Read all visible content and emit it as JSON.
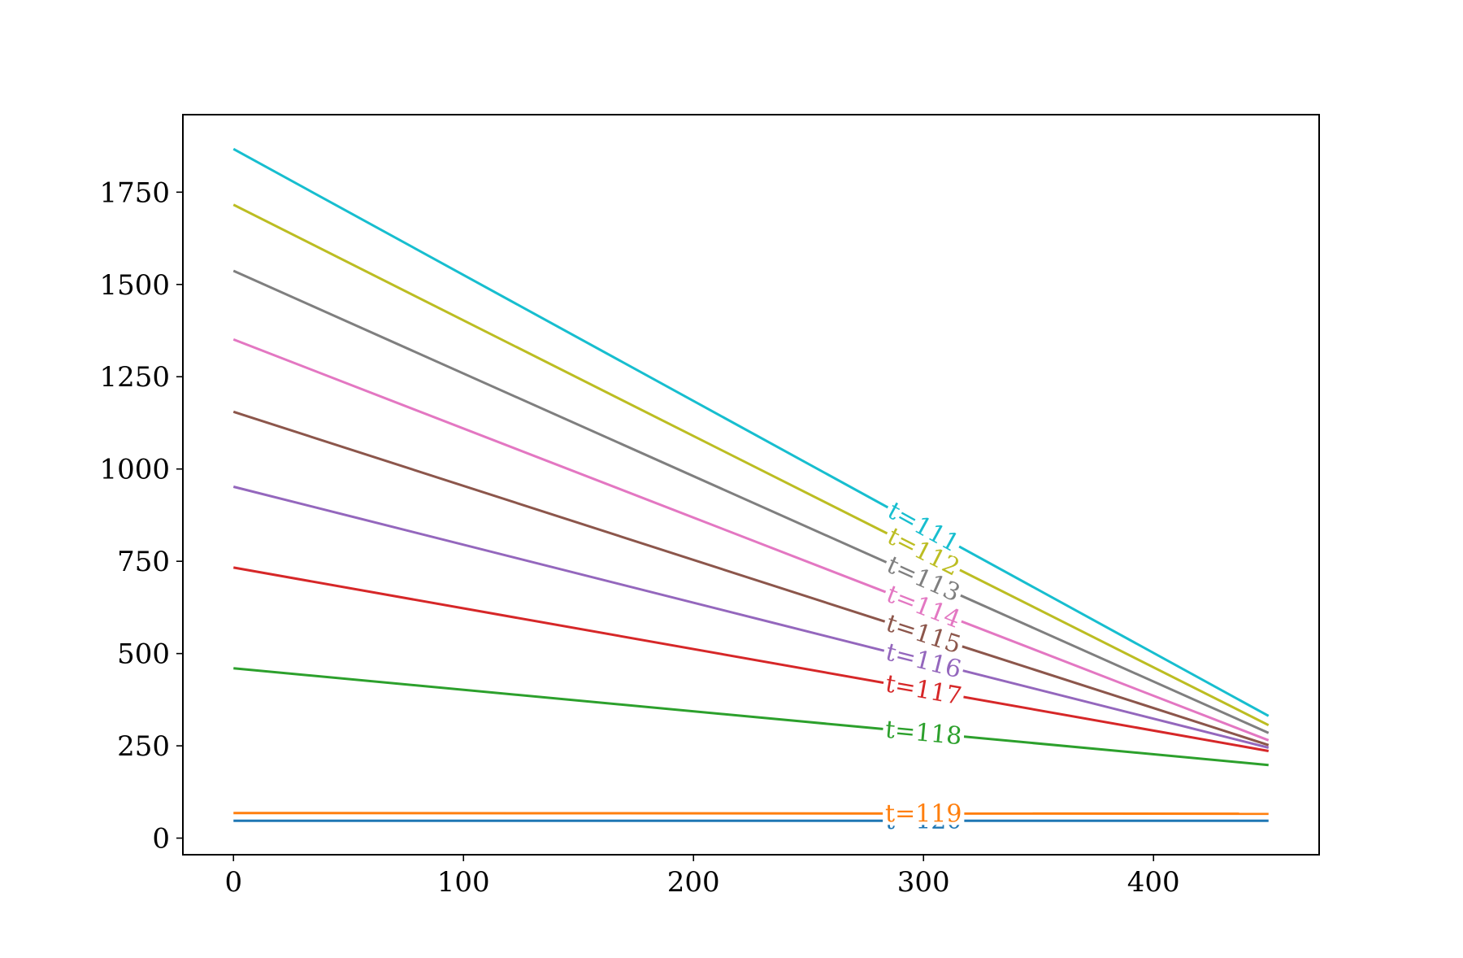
{
  "chart_data": {
    "type": "line",
    "title": "",
    "xlabel": "",
    "ylabel": "",
    "xlim": [
      -22,
      472
    ],
    "ylim": [
      -45,
      1960
    ],
    "xticks": [
      0,
      100,
      200,
      300,
      400
    ],
    "yticks": [
      0,
      250,
      500,
      750,
      1000,
      1250,
      1500,
      1750
    ],
    "grid": false,
    "label_x": 300,
    "series": [
      {
        "name": "t=120",
        "color": "#1f77b4",
        "x": [
          0,
          450
        ],
        "y": [
          47,
          47
        ]
      },
      {
        "name": "t=119",
        "color": "#ff7f0e",
        "x": [
          0,
          450
        ],
        "y": [
          68,
          66
        ]
      },
      {
        "name": "t=118",
        "color": "#2ca02c",
        "x": [
          0,
          450
        ],
        "y": [
          460,
          198
        ]
      },
      {
        "name": "t=117",
        "color": "#d62728",
        "x": [
          0,
          450
        ],
        "y": [
          733,
          236
        ]
      },
      {
        "name": "t=116",
        "color": "#9467bd",
        "x": [
          0,
          450
        ],
        "y": [
          952,
          245
        ]
      },
      {
        "name": "t=115",
        "color": "#8c564b",
        "x": [
          0,
          450
        ],
        "y": [
          1155,
          252
        ]
      },
      {
        "name": "t=114",
        "color": "#e377c2",
        "x": [
          0,
          450
        ],
        "y": [
          1351,
          265
        ]
      },
      {
        "name": "t=113",
        "color": "#7f7f7f",
        "x": [
          0,
          450
        ],
        "y": [
          1537,
          285
        ]
      },
      {
        "name": "t=112",
        "color": "#bcbd22",
        "x": [
          0,
          450
        ],
        "y": [
          1716,
          306
        ]
      },
      {
        "name": "t=111",
        "color": "#17becf",
        "x": [
          0,
          450
        ],
        "y": [
          1867,
          331
        ]
      }
    ]
  }
}
